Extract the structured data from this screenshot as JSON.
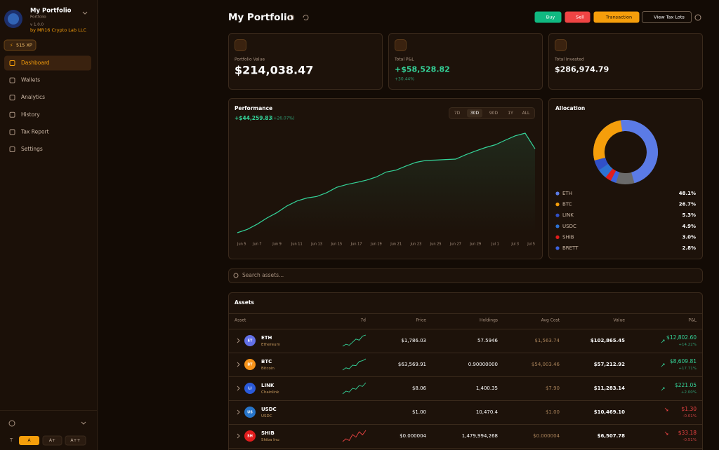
{
  "sidebar": {
    "title": "My Portfolio",
    "subtitle": "Portfolio",
    "version": "v 1.0.0",
    "author": "by MR16 Crypto Lab LLC",
    "xp": "515 XP",
    "nav": [
      "Dashboard",
      "Wallets",
      "Analytics",
      "History",
      "Tax Report",
      "Settings"
    ],
    "active_nav": 0,
    "font_sizes": [
      "A",
      "A+",
      "A++"
    ],
    "active_font_size": 0
  },
  "header": {
    "title": "My Portfolio",
    "buttons": [
      "Buy",
      "Sell",
      "Transaction",
      "View Tax Lots"
    ]
  },
  "cards": [
    {
      "label": "Portfolio Value",
      "value": "$214,038.47"
    },
    {
      "label": "Total P&L",
      "value": "+$58,528.82",
      "sub": "+30.44%"
    },
    {
      "label": "Total Invested",
      "value": "$286,974.79"
    }
  ],
  "performance": {
    "title": "Performance",
    "change": "+$44,259.83",
    "change_pct": "(+26.07%)",
    "ranges": [
      "7D",
      "30D",
      "90D",
      "1Y",
      "ALL"
    ],
    "active_range": 1,
    "x_labels": [
      "Jun 5",
      "Jun 7",
      "Jun 9",
      "Jun 11",
      "Jun 13",
      "Jun 15",
      "Jun 17",
      "Jun 19",
      "Jun 21",
      "Jun 23",
      "Jun 25",
      "Jun 27",
      "Jun 29",
      "Jul 1",
      "Jul 3",
      "Jul 5"
    ],
    "values": [
      169778.64,
      171500,
      174300,
      177600,
      180400,
      183900,
      186500,
      188100,
      188900,
      190900,
      193700,
      195200,
      196300,
      197500,
      199200,
      201800,
      202800,
      205000,
      206900,
      207900,
      208100,
      208400,
      208600,
      210900,
      212900,
      214700,
      216200,
      218600,
      220900,
      222300,
      214038.47
    ],
    "color": "#34d399"
  },
  "allocation": {
    "title": "Allocation",
    "categories": [
      "ETH",
      "BTC",
      "LINK",
      "USDC",
      "SHIB",
      "BRETT"
    ],
    "values": [
      48.1,
      26.7,
      5.3,
      4.9,
      3.0,
      2.8
    ],
    "value_labels": [
      "48.1%",
      "26.7%",
      "5.3%",
      "4.9%",
      "3.0%",
      "2.8%"
    ],
    "colors": [
      "#5b7be6",
      "#f59e0b",
      "#3150c8",
      "#2d72d2",
      "#e11d1d",
      "#3b63e0"
    ]
  },
  "search": {
    "placeholder": "Search assets..."
  },
  "assets": {
    "title": "Assets",
    "columns": [
      "Asset",
      "7d",
      "Price",
      "Holdings",
      "Avg Cost",
      "Value",
      "P&L"
    ],
    "rows": [
      {
        "icon": "ET",
        "icon_color": "#6270e8",
        "symbol": "ETH",
        "name": "Ethereum",
        "price": "$1,786.03",
        "holdings": "57.5946",
        "avg_cost": "$1,563.74",
        "value": "$102,865.45",
        "pnl": "$12,802.60",
        "pnl_pct": "+14.22%",
        "trend": "up",
        "spark": [
          10,
          11,
          10.5,
          12,
          13.5,
          13,
          15,
          15.5
        ]
      },
      {
        "icon": "BT",
        "icon_color": "#f7931a",
        "symbol": "BTC",
        "name": "Bitcoin",
        "price": "$63,569.91",
        "holdings": "0.90000000",
        "avg_cost": "$54,003.46",
        "value": "$57,212.92",
        "pnl": "$8,609.81",
        "pnl_pct": "+17.71%",
        "trend": "up",
        "spark": [
          10,
          11,
          10.6,
          12.2,
          12,
          13.8,
          14.2,
          15
        ]
      },
      {
        "icon": "LI",
        "icon_color": "#2a5ada",
        "symbol": "LINK",
        "name": "Chainlink",
        "price": "$8.06",
        "holdings": "1,400.35",
        "avg_cost": "$7.90",
        "value": "$11,283.14",
        "pnl": "$221.05",
        "pnl_pct": "+2.00%",
        "trend": "up",
        "spark": [
          10,
          11.2,
          10.8,
          12.4,
          12,
          13.6,
          13.2,
          14.8
        ]
      },
      {
        "icon": "US",
        "icon_color": "#2775ca",
        "symbol": "USDC",
        "name": "USDC",
        "price": "$1.00",
        "holdings": "10,470.4",
        "avg_cost": "$1.00",
        "value": "$10,469.10",
        "pnl": "$1.30",
        "pnl_pct": "-0.01%",
        "trend": "down"
      },
      {
        "icon": "SH",
        "icon_color": "#e11d1d",
        "symbol": "SHIB",
        "name": "Shiba Inu",
        "price": "$0.000004",
        "holdings": "1,479,994,268",
        "avg_cost": "$0.000004",
        "value": "$6,507.78",
        "pnl": "$33.18",
        "pnl_pct": "-0.51%",
        "trend": "down",
        "spark": [
          10,
          11,
          10.4,
          12.5,
          11.6,
          13.5,
          12.4,
          14
        ]
      }
    ]
  }
}
